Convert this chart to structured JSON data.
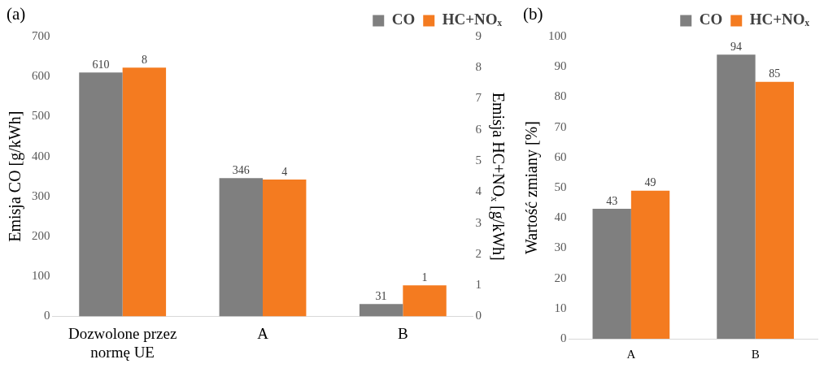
{
  "chart_data": [
    {
      "type": "bar",
      "title": "(a)",
      "categories": [
        "Dozwolone przez normę UE",
        "A",
        "B"
      ],
      "ylabel": "Emisja CO [g/kWh]",
      "y2label": "Emisja HC+NOₓ [g/kWh]",
      "series": [
        {
          "name": "CO",
          "color": "#7f7f7f",
          "values": [
            610,
            346,
            31
          ],
          "value_labels": [
            "610",
            "346",
            "31"
          ]
        },
        {
          "name": "HC+NOₓ",
          "color": "#f47b20",
          "values": [
            8,
            4.4,
            1
          ],
          "axis": "y2",
          "value_labels": [
            "8",
            "4",
            "1"
          ]
        }
      ],
      "ylim": [
        0,
        700
      ],
      "yticks": [
        0,
        100,
        200,
        300,
        400,
        500,
        600,
        700
      ],
      "y2lim": [
        0,
        9
      ],
      "y2ticks": [
        0,
        1,
        2,
        3,
        4,
        5,
        6,
        7,
        8,
        9
      ],
      "legend": "top right"
    },
    {
      "type": "bar",
      "title": "(b)",
      "categories": [
        "A",
        "B"
      ],
      "ylabel": "Wartość zmiany [%]",
      "series": [
        {
          "name": "CO",
          "color": "#7f7f7f",
          "values": [
            43,
            94
          ]
        },
        {
          "name": "HC+NOₓ",
          "color": "#f47b20",
          "values": [
            49,
            85
          ]
        }
      ],
      "ylim": [
        0,
        100
      ],
      "yticks": [
        0,
        10,
        20,
        30,
        40,
        50,
        60,
        70,
        80,
        90,
        100
      ],
      "data_labels": true,
      "legend": "top right"
    }
  ]
}
